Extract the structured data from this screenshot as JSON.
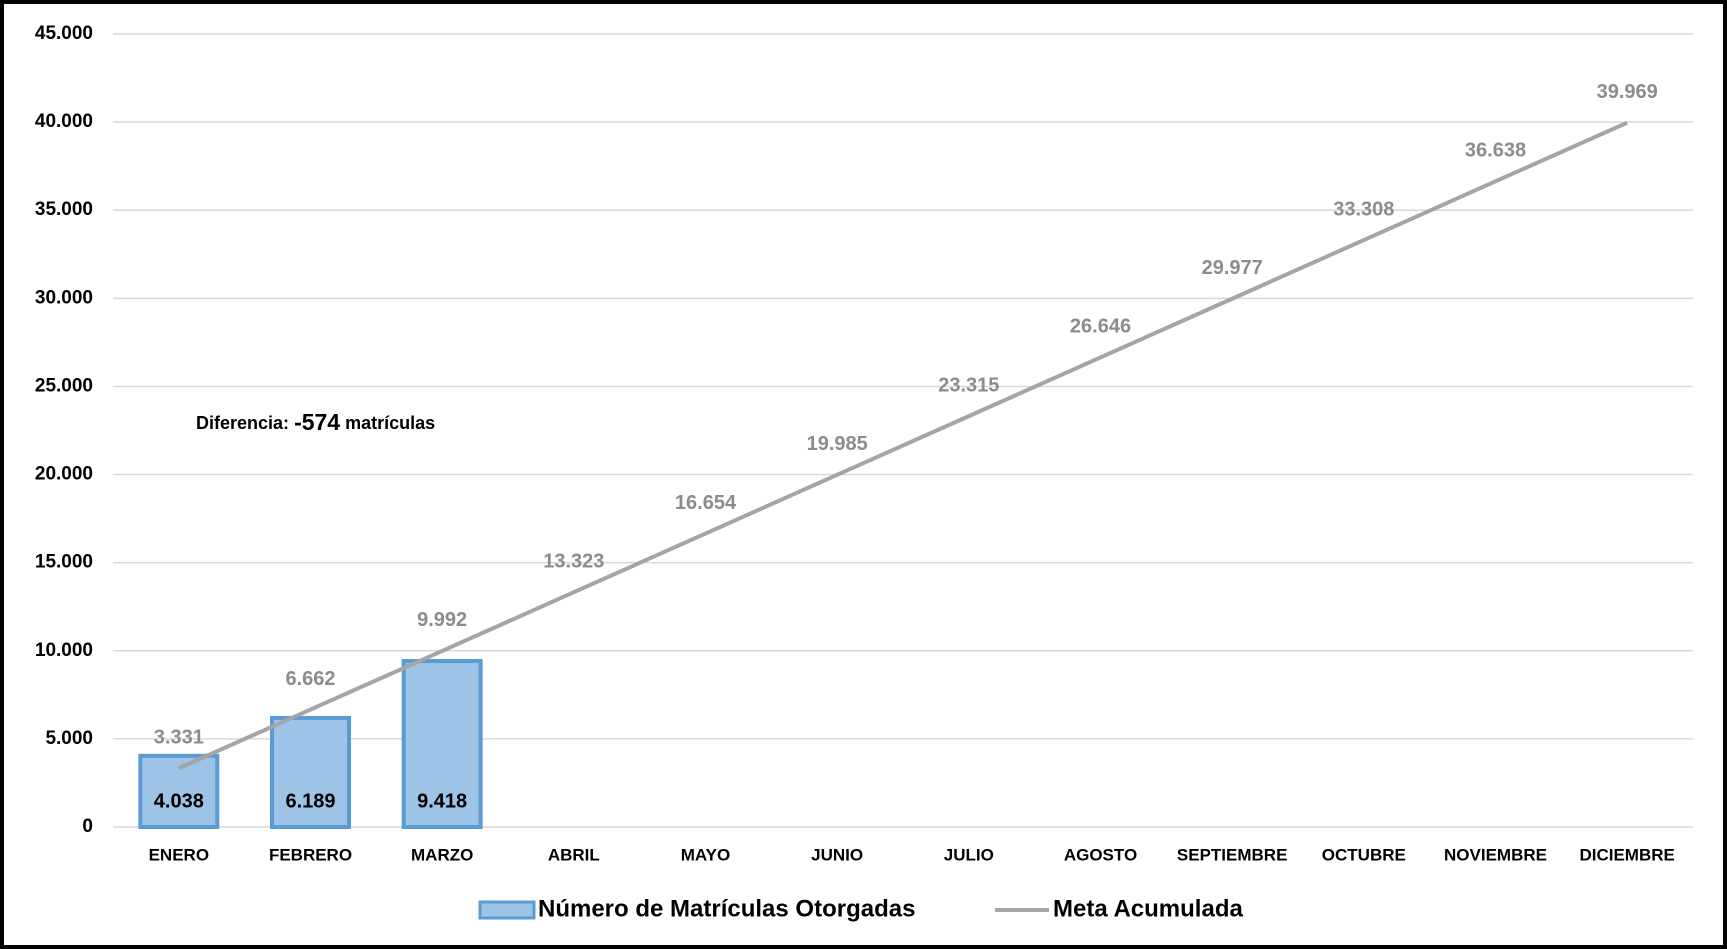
{
  "chart_data": {
    "type": "bar",
    "categories": [
      "ENERO",
      "FEBRERO",
      "MARZO",
      "ABRIL",
      "MAYO",
      "JUNIO",
      "JULIO",
      "AGOSTO",
      "SEPTIEMBRE",
      "OCTUBRE",
      "NOVIEMBRE",
      "DICIEMBRE"
    ],
    "series": [
      {
        "name": "Número de Matrículas Otorgadas",
        "type": "bar",
        "color": "#9dc3e6",
        "edge_color": "#5b9bd5",
        "values": [
          4038,
          6189,
          9418,
          null,
          null,
          null,
          null,
          null,
          null,
          null,
          null,
          null
        ],
        "value_labels": [
          "4.038",
          "6.189",
          "9.418",
          null,
          null,
          null,
          null,
          null,
          null,
          null,
          null,
          null
        ]
      },
      {
        "name": "Meta Acumulada",
        "type": "line",
        "color": "#a5a5a5",
        "values": [
          3331,
          6662,
          9992,
          13323,
          16654,
          19985,
          23315,
          26646,
          29977,
          33308,
          36638,
          39969
        ],
        "value_labels": [
          "3.331",
          "6.662",
          "9.992",
          "13.323",
          "16.654",
          "19.985",
          "23.315",
          "26.646",
          "29.977",
          "33.308",
          "36.638",
          "39.969"
        ]
      }
    ],
    "ylim": [
      0,
      45000
    ],
    "yticks": [
      0,
      {
        "value": 5000,
        "label": "5.000"
      },
      {
        "value": 10000,
        "label": "10.000"
      },
      {
        "value": 15000,
        "label": "15.000"
      },
      {
        "value": 20000,
        "label": "20.000"
      },
      {
        "value": 25000,
        "label": "25.000"
      },
      {
        "value": 30000,
        "label": "30.000"
      },
      {
        "value": 35000,
        "label": "35.000"
      },
      {
        "value": 40000,
        "label": "40.000"
      },
      {
        "value": 45000,
        "label": "45.000"
      }
    ],
    "grid": true,
    "legend": "bottom",
    "annotation": [
      "Diferencia:",
      "-574",
      "matrículas"
    ]
  }
}
